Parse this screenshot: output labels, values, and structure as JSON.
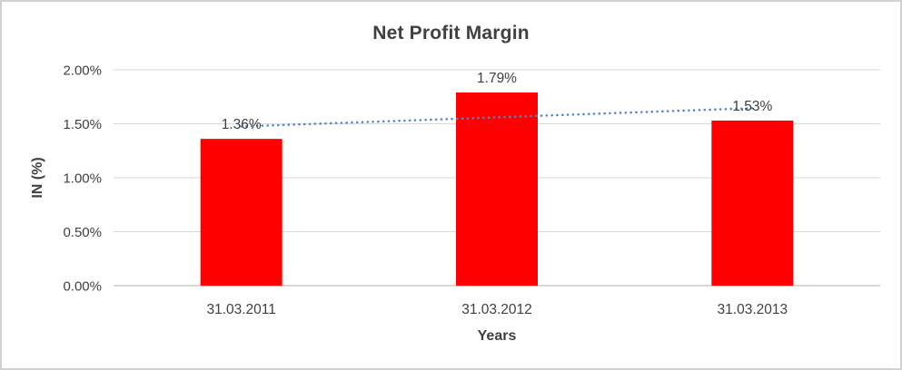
{
  "chart_data": {
    "type": "bar",
    "title": "Net Profit Margin",
    "xlabel": "Years",
    "ylabel": "IN (%)",
    "categories": [
      "31.03.2011",
      "31.03.2012",
      "31.03.2013"
    ],
    "values": [
      1.36,
      1.79,
      1.53
    ],
    "data_labels": [
      "1.36%",
      "1.79%",
      "1.53%"
    ],
    "ylim": [
      0,
      2.0
    ],
    "ytick_step": 0.5,
    "ytick_labels": [
      "0.00%",
      "0.50%",
      "1.00%",
      "1.50%",
      "2.00%"
    ],
    "grid": true,
    "legend": "none",
    "bar_color": "#FF0000",
    "trendline": {
      "type": "linear",
      "style": "dotted",
      "color": "#4E86C8"
    },
    "label_color": "#404040",
    "gridline_color": "#D9D9D9",
    "axis_line_color": "#BFBFBF",
    "frame_border_color": "#D1D1D1"
  }
}
